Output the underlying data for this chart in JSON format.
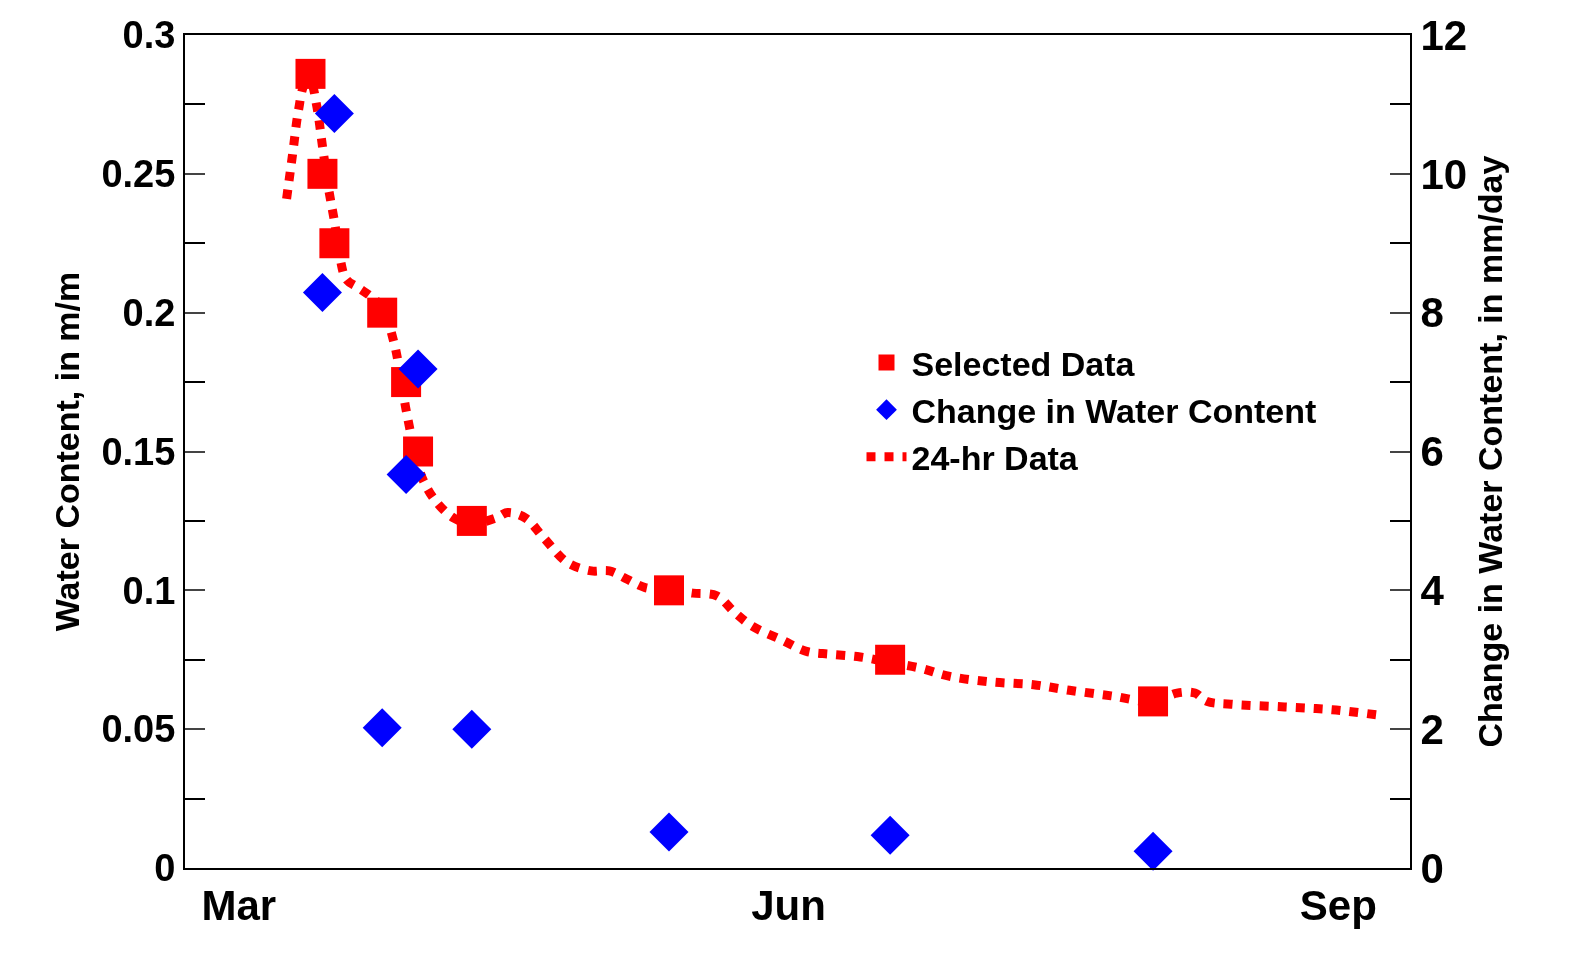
{
  "chart_data": {
    "type": "scatter",
    "ylabel": "Water Content, in m/m",
    "y2label": "Change in Water Content, in mm/day",
    "xlim": [
      "--02-20",
      "--09-13"
    ],
    "xticks": [
      {
        "value": "--03-01",
        "label": "Mar"
      },
      {
        "value": "--06-01",
        "label": "Jun"
      },
      {
        "value": "--09-01",
        "label": "Sep"
      }
    ],
    "ylim": [
      0,
      0.3
    ],
    "yticks": [
      0,
      0.05,
      0.1,
      0.15,
      0.2,
      0.25,
      0.3
    ],
    "y2lim": [
      0,
      12
    ],
    "y2ticks": [
      0,
      2,
      4,
      6,
      8,
      10,
      12
    ],
    "grid": false,
    "legend": "right",
    "series": [
      {
        "name": "Selected Data",
        "type": "scatter",
        "marker": "square",
        "color": "#ff0000",
        "x": [
          "--03-13",
          "--03-15",
          "--03-17",
          "--03-25",
          "--03-29",
          "--03-31",
          "--04-09",
          "--05-12",
          "--06-18",
          "--08-01"
        ],
        "values": [
          0.286,
          0.25,
          0.225,
          0.2,
          0.175,
          0.15,
          0.125,
          0.1,
          0.075,
          0.06
        ]
      },
      {
        "name": "Change in Water Content",
        "type": "scatter",
        "marker": "diamond",
        "color": "#0000ff",
        "axis": "y2",
        "x": [
          "--03-17",
          "--03-15",
          "--03-31",
          "--03-29",
          "--03-25",
          "--04-09",
          "--05-12",
          "--06-18",
          "--08-01"
        ],
        "values": [
          10.87,
          8.29,
          7.19,
          5.67,
          2.02,
          2.0,
          0.52,
          0.47,
          0.24
        ]
      },
      {
        "name": "24-hr Data",
        "type": "line",
        "line_style": "dotted",
        "color": "#ff0000",
        "x": [
          "--03-09",
          "--03-10",
          "--03-11",
          "--03-12",
          "--03-13",
          "--03-14",
          "--03-15",
          "--03-16",
          "--03-17",
          "--03-18",
          "--03-19",
          "--03-21",
          "--03-23",
          "--03-25",
          "--03-27",
          "--03-28",
          "--03-29",
          "--03-31",
          "--04-01",
          "--04-03",
          "--04-06",
          "--04-09",
          "--04-13",
          "--04-15",
          "--04-18",
          "--04-21",
          "--04-25",
          "--04-29",
          "--05-02",
          "--05-05",
          "--05-08",
          "--05-13",
          "--05-16",
          "--05-20",
          "--05-23",
          "--05-26",
          "--05-31",
          "--06-04",
          "--06-08",
          "--06-13",
          "--06-18",
          "--06-23",
          "--06-28",
          "--07-05",
          "--07-12",
          "--07-18",
          "--07-25",
          "--08-01",
          "--08-05",
          "--08-08",
          "--08-10",
          "--08-14",
          "--08-23",
          "--08-31",
          "--09-08"
        ],
        "values": [
          0.241,
          0.257,
          0.273,
          0.282,
          0.283,
          0.275,
          0.26,
          0.245,
          0.233,
          0.219,
          0.212,
          0.209,
          0.206,
          0.202,
          0.189,
          0.178,
          0.165,
          0.145,
          0.139,
          0.132,
          0.126,
          0.124,
          0.126,
          0.128,
          0.126,
          0.119,
          0.11,
          0.107,
          0.107,
          0.104,
          0.101,
          0.1,
          0.099,
          0.098,
          0.092,
          0.087,
          0.082,
          0.078,
          0.077,
          0.076,
          0.074,
          0.072,
          0.069,
          0.067,
          0.066,
          0.064,
          0.062,
          0.06,
          0.063,
          0.063,
          0.06,
          0.059,
          0.058,
          0.057,
          0.055
        ]
      }
    ]
  }
}
